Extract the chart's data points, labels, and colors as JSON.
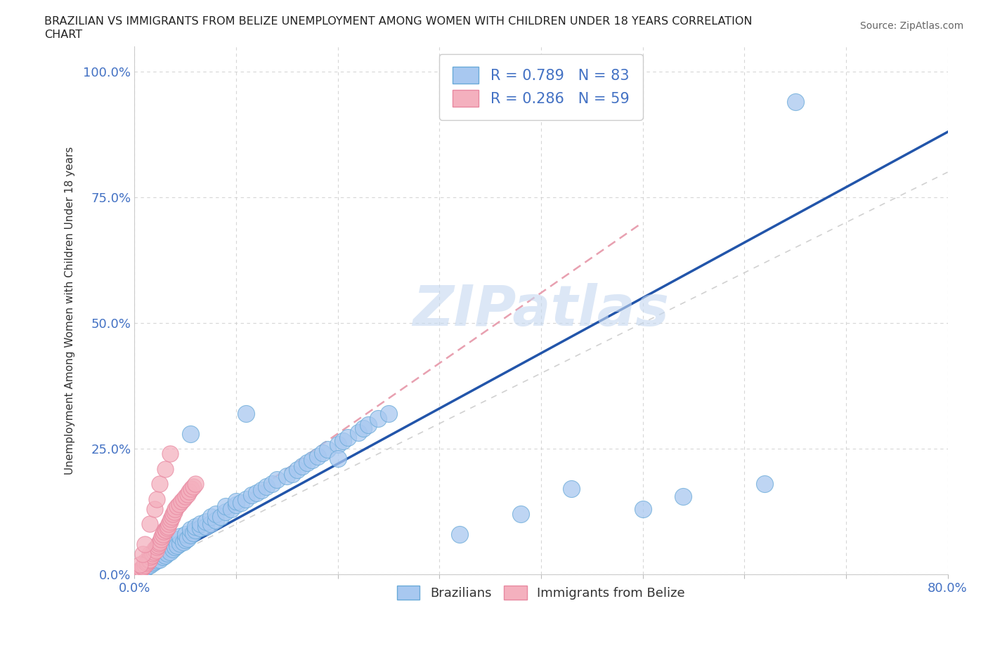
{
  "title_line1": "BRAZILIAN VS IMMIGRANTS FROM BELIZE UNEMPLOYMENT AMONG WOMEN WITH CHILDREN UNDER 18 YEARS CORRELATION",
  "title_line2": "CHART",
  "source_text": "Source: ZipAtlas.com",
  "ylabel": "Unemployment Among Women with Children Under 18 years",
  "xlim": [
    0.0,
    0.8
  ],
  "ylim": [
    0.0,
    1.05
  ],
  "xticks": [
    0.0,
    0.1,
    0.2,
    0.3,
    0.4,
    0.5,
    0.6,
    0.7,
    0.8
  ],
  "yticks": [
    0.0,
    0.25,
    0.5,
    0.75,
    1.0
  ],
  "grid_color": "#cccccc",
  "watermark": "ZIPatlas",
  "watermark_color": "#c5d8f0",
  "blue_color": "#a8c8f0",
  "pink_color": "#f4b0be",
  "blue_edge_color": "#6aaad8",
  "pink_edge_color": "#e888a0",
  "blue_line_color": "#2255aa",
  "pink_line_color": "#e8a0b0",
  "ref_line_color": "#cccccc",
  "R_blue": 0.789,
  "N_blue": 83,
  "R_pink": 0.286,
  "N_pink": 59,
  "blue_line_x0": 0.0,
  "blue_line_y0": 0.0,
  "blue_line_x1": 0.8,
  "blue_line_y1": 0.88,
  "pink_line_x0": 0.0,
  "pink_line_y0": 0.0,
  "pink_line_x1": 0.5,
  "pink_line_y1": 0.7,
  "bg_color": "#ffffff",
  "tick_color": "#4472c4",
  "label_color": "#333333",
  "blue_scatter_x": [
    0.005,
    0.008,
    0.01,
    0.01,
    0.012,
    0.015,
    0.015,
    0.018,
    0.02,
    0.02,
    0.022,
    0.025,
    0.025,
    0.028,
    0.03,
    0.03,
    0.032,
    0.035,
    0.035,
    0.038,
    0.04,
    0.04,
    0.042,
    0.045,
    0.045,
    0.048,
    0.05,
    0.05,
    0.052,
    0.055,
    0.055,
    0.058,
    0.06,
    0.06,
    0.065,
    0.065,
    0.07,
    0.07,
    0.075,
    0.075,
    0.08,
    0.08,
    0.085,
    0.09,
    0.09,
    0.095,
    0.1,
    0.1,
    0.105,
    0.11,
    0.115,
    0.12,
    0.125,
    0.13,
    0.135,
    0.14,
    0.15,
    0.155,
    0.16,
    0.165,
    0.17,
    0.175,
    0.18,
    0.185,
    0.19,
    0.2,
    0.205,
    0.21,
    0.22,
    0.225,
    0.23,
    0.24,
    0.25,
    0.055,
    0.11,
    0.2,
    0.32,
    0.38,
    0.43,
    0.5,
    0.54,
    0.62,
    0.65
  ],
  "blue_scatter_y": [
    0.005,
    0.01,
    0.012,
    0.02,
    0.015,
    0.018,
    0.03,
    0.022,
    0.025,
    0.035,
    0.028,
    0.03,
    0.045,
    0.035,
    0.038,
    0.055,
    0.042,
    0.045,
    0.06,
    0.05,
    0.055,
    0.07,
    0.058,
    0.062,
    0.075,
    0.065,
    0.068,
    0.08,
    0.072,
    0.078,
    0.09,
    0.082,
    0.088,
    0.095,
    0.092,
    0.1,
    0.095,
    0.105,
    0.1,
    0.115,
    0.108,
    0.12,
    0.115,
    0.125,
    0.135,
    0.13,
    0.138,
    0.145,
    0.142,
    0.15,
    0.158,
    0.162,
    0.168,
    0.175,
    0.18,
    0.188,
    0.195,
    0.2,
    0.208,
    0.215,
    0.222,
    0.228,
    0.235,
    0.242,
    0.248,
    0.258,
    0.265,
    0.272,
    0.282,
    0.29,
    0.298,
    0.31,
    0.32,
    0.28,
    0.32,
    0.23,
    0.08,
    0.12,
    0.17,
    0.13,
    0.155,
    0.18,
    0.94
  ],
  "pink_scatter_x": [
    0.002,
    0.003,
    0.004,
    0.005,
    0.006,
    0.007,
    0.008,
    0.009,
    0.01,
    0.01,
    0.012,
    0.013,
    0.014,
    0.015,
    0.015,
    0.016,
    0.017,
    0.018,
    0.019,
    0.02,
    0.021,
    0.022,
    0.023,
    0.024,
    0.025,
    0.026,
    0.027,
    0.028,
    0.029,
    0.03,
    0.031,
    0.032,
    0.033,
    0.034,
    0.035,
    0.036,
    0.037,
    0.038,
    0.039,
    0.04,
    0.042,
    0.044,
    0.046,
    0.048,
    0.05,
    0.052,
    0.054,
    0.056,
    0.058,
    0.06,
    0.005,
    0.008,
    0.01,
    0.015,
    0.02,
    0.022,
    0.025,
    0.03,
    0.035
  ],
  "pink_scatter_y": [
    0.003,
    0.005,
    0.006,
    0.008,
    0.01,
    0.012,
    0.014,
    0.016,
    0.018,
    0.025,
    0.022,
    0.025,
    0.028,
    0.03,
    0.04,
    0.035,
    0.038,
    0.042,
    0.045,
    0.05,
    0.048,
    0.055,
    0.058,
    0.062,
    0.065,
    0.07,
    0.075,
    0.08,
    0.085,
    0.09,
    0.088,
    0.092,
    0.095,
    0.1,
    0.105,
    0.11,
    0.115,
    0.12,
    0.125,
    0.13,
    0.135,
    0.14,
    0.145,
    0.15,
    0.155,
    0.16,
    0.165,
    0.17,
    0.175,
    0.18,
    0.02,
    0.04,
    0.06,
    0.1,
    0.13,
    0.15,
    0.18,
    0.21,
    0.24
  ]
}
